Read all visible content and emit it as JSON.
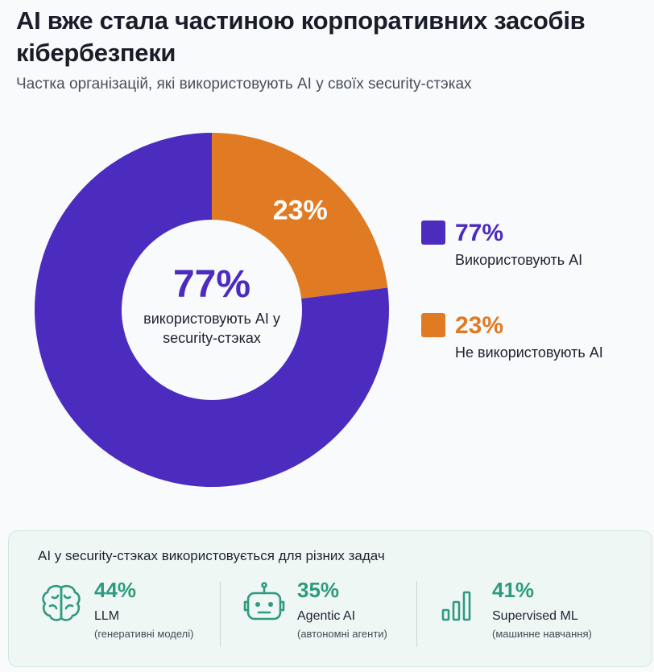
{
  "header": {
    "title": "AI вже стала частиною корпоративних засобів кібербезпеки",
    "subtitle": "Частка організацій, які використовують AI у своїх security-стэках"
  },
  "chart_data": {
    "type": "pie",
    "title": "AI вже стала частиною корпоративних засобів кібербезпеки",
    "subtitle": "Частка організацій, які використовують AI у своїх security-стэках",
    "slices": [
      {
        "name": "Використовують AI",
        "value": 77,
        "label": "77%",
        "color": "#4b2cbf"
      },
      {
        "name": "Не використовують AI",
        "value": 23,
        "label": "23%",
        "color": "#e07a23"
      }
    ],
    "center": {
      "value": "77%",
      "label": "використовують AI у security-стэках"
    },
    "legend_position": "right"
  },
  "colors": {
    "primary": "#4b2cbf",
    "secondary": "#e07a23",
    "accent_green": "#2f9a7f",
    "panel_bg": "#eef7f4"
  },
  "panel": {
    "title": "AI у security-стэках використовується для різних задач",
    "items": [
      {
        "icon": "brain-icon",
        "pct": "44%",
        "name": "LLM",
        "desc": "(генеративні моделі)"
      },
      {
        "icon": "robot-icon",
        "pct": "35%",
        "name": "Agentic AI",
        "desc": "(автономні агенти)"
      },
      {
        "icon": "bar-chart-icon",
        "pct": "41%",
        "name": "Supervised ML",
        "desc": "(машинне навчання)"
      }
    ]
  }
}
